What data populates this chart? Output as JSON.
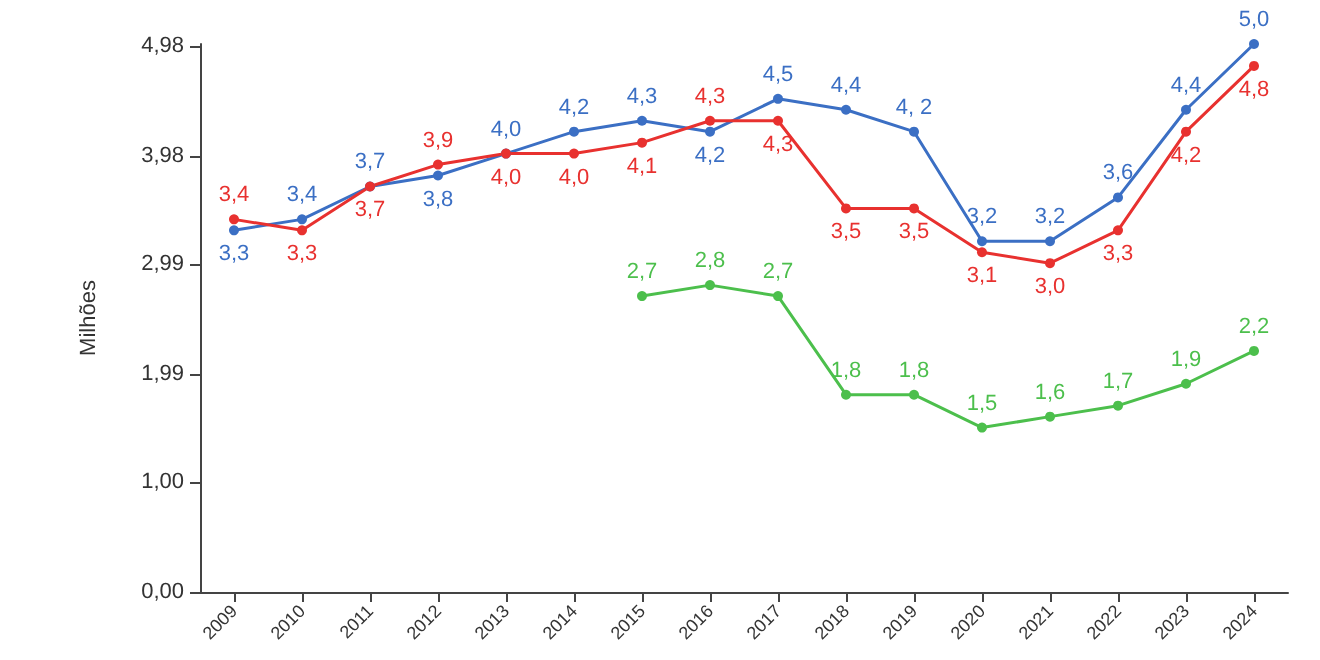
{
  "chart_data": {
    "type": "line",
    "ylabel": "Milhões",
    "categories": [
      "2009",
      "2010",
      "2011",
      "2012",
      "2013",
      "2014",
      "2015",
      "2016",
      "2017",
      "2018",
      "2019",
      "2020",
      "2021",
      "2022",
      "2023",
      "2024"
    ],
    "series": [
      {
        "color": "#3b6fc4",
        "values": [
          3.3,
          3.4,
          3.7,
          3.8,
          4.0,
          4.2,
          4.3,
          4.2,
          4.5,
          4.4,
          4.2,
          3.2,
          3.2,
          3.6,
          4.4,
          5.0
        ],
        "value_labels": [
          "3,3",
          "3,4",
          "3,7",
          "3,8",
          "4,0",
          "4,2",
          "4,3",
          "4,2",
          "4,5",
          "4,4",
          "4, 2",
          "3,2",
          "3,2",
          "3,6",
          "4,4",
          "5,0"
        ]
      },
      {
        "color": "#e8312f",
        "values": [
          3.4,
          3.3,
          3.7,
          3.9,
          4.0,
          4.0,
          4.1,
          4.3,
          4.3,
          3.5,
          3.5,
          3.1,
          3.0,
          3.3,
          4.2,
          4.8
        ],
        "value_labels": [
          "3,4",
          "3,3",
          "3,7",
          "3,9",
          "4,0",
          "4,0",
          "4,1",
          "4,3",
          "4,3",
          "3,5",
          "3,5",
          "3,1",
          "3,0",
          "3,3",
          "4,2",
          "4,8"
        ]
      },
      {
        "color": "#4cbf4c",
        "values": [
          null,
          null,
          null,
          null,
          null,
          null,
          2.7,
          2.8,
          2.7,
          1.8,
          1.8,
          1.5,
          1.6,
          1.7,
          1.9,
          2.2
        ],
        "value_labels": [
          null,
          null,
          null,
          null,
          null,
          null,
          "2,7",
          "2,8",
          "2,7",
          "1,8",
          "1,8",
          "1,5",
          "1,6",
          "1,7",
          "1,9",
          "2,2"
        ]
      }
    ],
    "ylim": [
      0,
      5.0
    ],
    "yticks": [
      {
        "value": 0,
        "label": "0,00"
      },
      {
        "value": 1,
        "label": "1,00"
      },
      {
        "value": 1.99,
        "label": "1,99"
      },
      {
        "value": 2.99,
        "label": "2,99"
      },
      {
        "value": 3.98,
        "label": "3,98"
      },
      {
        "value": 4.98,
        "label": "4,98"
      }
    ],
    "grid": false,
    "marker": "circle",
    "line_style": "solid"
  }
}
